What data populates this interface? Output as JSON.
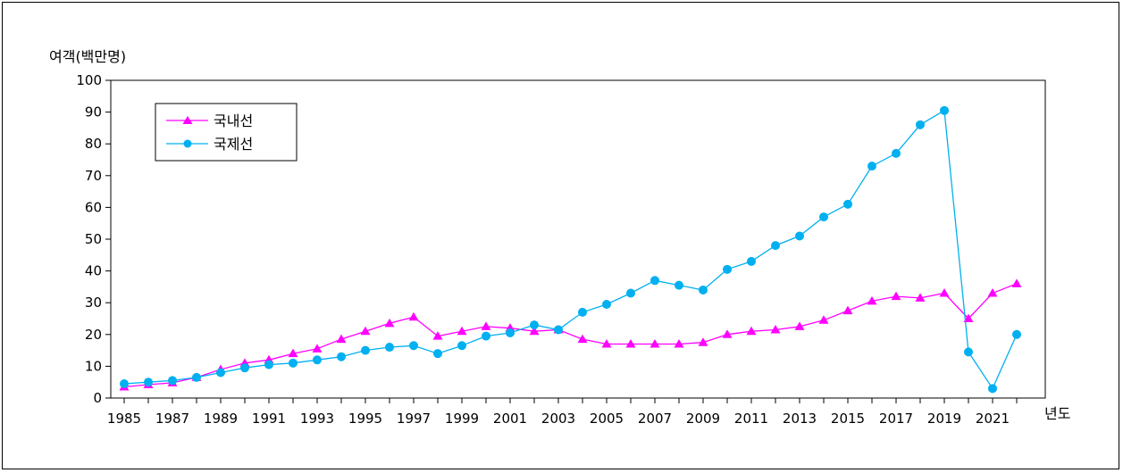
{
  "chart_data": {
    "type": "line",
    "ylabel": "여객(백만명)",
    "xlabel": "년도",
    "ylim": [
      0,
      100
    ],
    "yticks": [
      0,
      10,
      20,
      30,
      40,
      50,
      60,
      70,
      80,
      90,
      100
    ],
    "x": [
      1985,
      1986,
      1987,
      1988,
      1989,
      1990,
      1991,
      1992,
      1993,
      1994,
      1995,
      1996,
      1997,
      1998,
      1999,
      2000,
      2001,
      2002,
      2003,
      2004,
      2005,
      2006,
      2007,
      2008,
      2009,
      2010,
      2011,
      2012,
      2013,
      2014,
      2015,
      2016,
      2017,
      2018,
      2019,
      2020,
      2021,
      2022
    ],
    "xtick_labels": [
      "1985",
      "1987",
      "1989",
      "1991",
      "1993",
      "1995",
      "1997",
      "1999",
      "2001",
      "2003",
      "2005",
      "2007",
      "2009",
      "2011",
      "2013",
      "2015",
      "2017",
      "2019",
      "2021"
    ],
    "grid": false,
    "legend": "top-left",
    "series": [
      {
        "name": "국내선",
        "color": "#ff00ff",
        "marker": "triangle",
        "values": [
          3.5,
          4.2,
          4.8,
          6.5,
          9.0,
          11.0,
          12.0,
          14.0,
          15.5,
          18.5,
          21.0,
          23.5,
          25.5,
          19.5,
          21.0,
          22.5,
          22.0,
          21.0,
          21.5,
          18.5,
          17.0,
          17.0,
          17.0,
          17.0,
          17.5,
          20.0,
          21.0,
          21.5,
          22.5,
          24.5,
          27.5,
          30.5,
          32.0,
          31.5,
          33.0,
          25.0,
          33.0,
          36.0
        ]
      },
      {
        "name": "국제선",
        "color": "#00b0f0",
        "marker": "circle",
        "values": [
          4.5,
          5.0,
          5.5,
          6.5,
          8.0,
          9.5,
          10.5,
          11.0,
          12.0,
          13.0,
          15.0,
          16.0,
          16.5,
          14.0,
          16.5,
          19.5,
          20.5,
          23.0,
          21.5,
          27.0,
          29.5,
          33.0,
          37.0,
          35.5,
          34.0,
          40.5,
          43.0,
          48.0,
          51.0,
          57.0,
          61.0,
          73.0,
          77.0,
          86.0,
          90.5,
          14.5,
          3.0,
          20.0
        ]
      }
    ]
  }
}
